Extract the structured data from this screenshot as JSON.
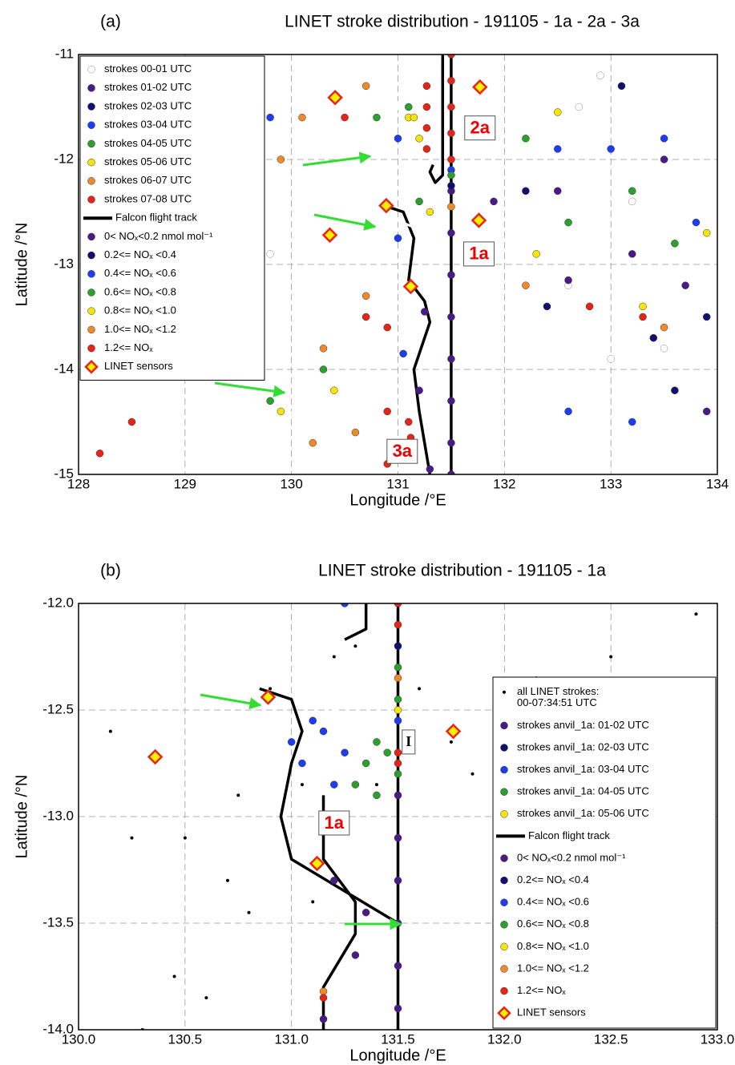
{
  "chart_data": [
    {
      "type": "scatter",
      "panel_label": "(a)",
      "title": "LINET stroke distribution - 191105 - 1a - 2a - 3a",
      "x_label": "Longitude /°E",
      "y_label": "Latitude /°N",
      "xlim": [
        128,
        134
      ],
      "ylim": [
        -15,
        -11
      ],
      "xticks": [
        128,
        129,
        130,
        131,
        132,
        133,
        134
      ],
      "yticks": [
        -11,
        -12,
        -13,
        -14,
        -15
      ],
      "grid": true,
      "legend_corner": "upper left",
      "series": [
        {
          "name": "strokes 00-01 UTC",
          "marker": "circle",
          "color": "#ffffff",
          "x": [
            132.7,
            133.2,
            132.6,
            133.5,
            132.9,
            129.8,
            133.0
          ],
          "y": [
            -11.5,
            -12.4,
            -13.2,
            -13.8,
            -11.2,
            -12.9,
            -13.9
          ]
        },
        {
          "name": "strokes 01-02 UTC",
          "marker": "circle",
          "color": "#4b1a8a",
          "x": [
            132.5,
            132.6,
            133.7,
            133.2,
            133.9,
            131.9,
            133.5
          ],
          "y": [
            -12.3,
            -13.15,
            -13.2,
            -12.9,
            -14.4,
            -12.4,
            -12.0
          ]
        },
        {
          "name": "strokes 02-03 UTC",
          "marker": "circle",
          "color": "#101070",
          "x": [
            132.2,
            133.9,
            133.6,
            132.4,
            133.1,
            133.4
          ],
          "y": [
            -12.3,
            -13.5,
            -14.2,
            -13.4,
            -11.3,
            -13.7
          ]
        },
        {
          "name": "strokes 03-04 UTC",
          "marker": "circle",
          "color": "#1e3cf0",
          "x": [
            133.0,
            133.5,
            132.5,
            131.0,
            132.6,
            133.2,
            129.8,
            131.0,
            133.8
          ],
          "y": [
            -11.9,
            -11.8,
            -11.9,
            -12.75,
            -14.4,
            -14.5,
            -11.6,
            -11.8,
            -12.6
          ]
        },
        {
          "name": "strokes 04-05 UTC",
          "marker": "circle",
          "color": "#2ca02c",
          "x": [
            133.2,
            132.2,
            131.1,
            130.8,
            129.8,
            132.6,
            131.2,
            130.3,
            133.6
          ],
          "y": [
            -12.3,
            -11.8,
            -11.5,
            -11.6,
            -14.3,
            -12.6,
            -12.4,
            -14.0,
            -12.8
          ]
        },
        {
          "name": "strokes 05-06 UTC",
          "marker": "circle",
          "color": "#f5e50a",
          "x": [
            131.1,
            133.3,
            129.9,
            130.4,
            132.5,
            131.3,
            133.9,
            132.3
          ],
          "y": [
            -11.6,
            -13.4,
            -14.4,
            -14.2,
            -11.55,
            -12.5,
            -12.7,
            -12.9
          ]
        },
        {
          "name": "strokes 06-07 UTC",
          "marker": "circle",
          "color": "#ee8a2a",
          "x": [
            130.7,
            130.6,
            130.3,
            130.2,
            130.7,
            129.9,
            133.5,
            130.1,
            132.2
          ],
          "y": [
            -13.3,
            -14.6,
            -13.8,
            -14.7,
            -11.3,
            -12.0,
            -13.6,
            -11.6,
            -13.2
          ]
        },
        {
          "name": "strokes 07-08 UTC",
          "marker": "circle",
          "color": "#e62418",
          "x": [
            130.7,
            130.9,
            130.9,
            130.5,
            133.3,
            128.2,
            130.9,
            132.8,
            128.5
          ],
          "y": [
            -13.5,
            -13.6,
            -14.9,
            -11.6,
            -13.5,
            -14.8,
            -14.4,
            -13.4,
            -14.5
          ]
        },
        {
          "name": "Falcon flight track",
          "marker": "line",
          "color": "#000000",
          "x": [
            131.42,
            131.42,
            131.35,
            131.3,
            131.33,
            null,
            130.9,
            131.05,
            131.15,
            131.1,
            131.25,
            131.3,
            131.15,
            131.2,
            131.3,
            null,
            131.5,
            131.5
          ],
          "y": [
            -11.0,
            -12.15,
            -12.22,
            -12.12,
            -12.05,
            null,
            -12.45,
            -12.5,
            -12.75,
            -13.15,
            -13.35,
            -13.55,
            -14.0,
            -14.4,
            -15.0,
            null,
            -11.0,
            -15.0
          ]
        },
        {
          "name": "0< NOₓ<0.2 nmol mol⁻¹",
          "marker": "circle",
          "color": "#4b1a8a",
          "x": [
            131.5,
            131.5,
            131.5,
            131.5,
            131.5,
            131.5,
            131.5,
            131.5,
            131.3,
            131.2,
            131.25
          ],
          "y": [
            -12.3,
            -12.7,
            -13.1,
            -13.5,
            -13.9,
            -14.3,
            -14.7,
            -15.0,
            -14.95,
            -14.2,
            -13.45
          ]
        },
        {
          "name": "0.2<= NOₓ <0.4",
          "marker": "circle",
          "color": "#101070",
          "x": [
            131.5
          ],
          "y": [
            -12.25
          ]
        },
        {
          "name": "0.4<= NOₓ <0.6",
          "marker": "circle",
          "color": "#1e3cf0",
          "x": [
            131.05,
            131.5
          ],
          "y": [
            -13.85,
            -12.1
          ]
        },
        {
          "name": "0.6<= NOₓ <0.8",
          "marker": "circle",
          "color": "#2ca02c",
          "x": [
            131.5
          ],
          "y": [
            -12.15
          ]
        },
        {
          "name": "0.8<= NOₓ <1.0",
          "marker": "circle",
          "color": "#f5e50a",
          "x": [
            131.15,
            131.2
          ],
          "y": [
            -11.6,
            -11.8
          ]
        },
        {
          "name": "1.0<= NOₓ <1.2",
          "marker": "circle",
          "color": "#ee8a2a",
          "x": [
            131.5
          ],
          "y": [
            -12.45
          ]
        },
        {
          "name": "1.2<= NOₓ",
          "marker": "circle",
          "color": "#e62418",
          "x": [
            131.5,
            131.5,
            131.5,
            131.5,
            131.5,
            131.27,
            131.27,
            131.27,
            131.27,
            131.1,
            131.12
          ],
          "y": [
            -11.0,
            -11.25,
            -11.5,
            -11.75,
            -12.0,
            -11.3,
            -11.5,
            -11.7,
            -11.9,
            -14.5,
            -14.65
          ]
        },
        {
          "name": "LINET sensors",
          "marker": "diamond",
          "color": "#e62418",
          "x": [
            130.41,
            131.77,
            130.36,
            130.89,
            131.12,
            131.76
          ],
          "y": [
            -11.41,
            -11.31,
            -12.72,
            -12.44,
            -13.21,
            -12.58
          ]
        }
      ],
      "annotations": [
        {
          "text": "2a",
          "x": 131.77,
          "y": -11.7
        },
        {
          "text": "1a",
          "x": 131.76,
          "y": -12.9
        },
        {
          "text": "3a",
          "x": 131.04,
          "y": -14.78
        }
      ]
    },
    {
      "type": "scatter",
      "panel_label": "(b)",
      "title": "LINET stroke distribution - 191105 - 1a",
      "x_label": "Longitude /°E",
      "y_label": "Latitude /°N",
      "xlim": [
        130,
        133
      ],
      "ylim": [
        -14,
        -12
      ],
      "xticks": [
        {
          "value": 130,
          "label": "130.0"
        },
        130.5,
        {
          "value": 131,
          "label": "131.0"
        },
        131.5,
        {
          "value": 132,
          "label": "132.0"
        },
        132.5,
        {
          "value": 133,
          "label": "133.0"
        }
      ],
      "yticks": [
        {
          "value": -12,
          "label": "-12.0"
        },
        -12.5,
        {
          "value": -13,
          "label": "-13.0"
        },
        -13.5,
        {
          "value": -14,
          "label": "-14.0"
        }
      ],
      "grid": true,
      "legend_corner": "lower right",
      "series": [
        {
          "name": "all LINET strokes:\n00-07:34:51 UTC",
          "marker": "dot",
          "color": "#000000",
          "x": [
            130.8,
            130.5,
            130.45,
            130.9,
            132.5,
            132.5,
            131.85,
            131.2,
            131.75,
            132.15,
            132.8,
            130.6,
            130.75,
            131.05,
            132.0,
            132.3,
            130.3,
            131.3,
            131.6,
            130.25,
            132.9,
            131.1,
            130.15,
            131.4,
            130.7
          ],
          "y": [
            -13.45,
            -13.1,
            -13.75,
            -12.4,
            -12.25,
            -12.55,
            -12.8,
            -12.25,
            -12.65,
            -12.35,
            -12.55,
            -13.85,
            -12.9,
            -12.85,
            -13.0,
            -12.7,
            -14.0,
            -12.2,
            -12.4,
            -13.1,
            -12.05,
            -13.4,
            -12.6,
            -12.85,
            -13.3
          ]
        },
        {
          "name": "strokes anvil_1a: 01-02 UTC",
          "marker": "circle",
          "color": "#4b1a8a",
          "x": [],
          "y": []
        },
        {
          "name": "strokes anvil_1a: 02-03 UTC",
          "marker": "circle",
          "color": "#101070",
          "x": [],
          "y": []
        },
        {
          "name": "strokes anvil_1a: 03-04 UTC",
          "marker": "circle",
          "color": "#1e3cf0",
          "x": [
            131.15,
            131.05,
            131.2,
            131.1,
            131.25,
            131.0
          ],
          "y": [
            -12.6,
            -12.75,
            -12.85,
            -12.55,
            -12.7,
            -12.65
          ]
        },
        {
          "name": "strokes anvil_1a: 04-05 UTC",
          "marker": "circle",
          "color": "#2ca02c",
          "x": [
            131.35,
            131.4,
            131.45,
            131.3,
            131.4,
            131.5
          ],
          "y": [
            -12.75,
            -12.9,
            -12.7,
            -12.85,
            -12.65,
            -12.8
          ]
        },
        {
          "name": "strokes anvil_1a: 05-06 UTC",
          "marker": "circle",
          "color": "#f5e50a",
          "x": [],
          "y": []
        },
        {
          "name": "Falcon flight track",
          "marker": "line",
          "color": "#000000",
          "x": [
            130.85,
            131.0,
            131.05,
            131.0,
            130.95,
            131.0,
            131.5,
            null,
            131.35,
            131.35,
            131.25,
            null,
            131.15,
            131.15,
            131.3,
            131.3,
            131.15,
            131.15,
            null,
            131.5,
            131.5
          ],
          "y": [
            -12.4,
            -12.45,
            -12.6,
            -12.75,
            -13.0,
            -13.2,
            -13.5,
            null,
            -12.0,
            -12.12,
            -12.17,
            null,
            -12.9,
            -13.2,
            -13.4,
            -13.55,
            -13.8,
            -14.0,
            null,
            -12.0,
            -14.0
          ]
        },
        {
          "name": "0< NOₓ<0.2 nmol mol⁻¹",
          "marker": "circle",
          "color": "#4b1a8a",
          "x": [
            131.5,
            131.5,
            131.5,
            131.5,
            131.5,
            131.5,
            131.2,
            131.35,
            131.3,
            131.15
          ],
          "y": [
            -12.9,
            -13.1,
            -13.3,
            -13.5,
            -13.7,
            -13.9,
            -13.3,
            -13.45,
            -13.65,
            -13.95
          ]
        },
        {
          "name": "0.2<= NOₓ <0.4",
          "marker": "circle",
          "color": "#101070",
          "x": [
            131.5
          ],
          "y": [
            -12.2
          ]
        },
        {
          "name": "0.4<= NOₓ <0.6",
          "marker": "circle",
          "color": "#1e3cf0",
          "x": [
            131.25,
            131.5
          ],
          "y": [
            -12.0,
            -12.55
          ]
        },
        {
          "name": "0.6<= NOₓ <0.8",
          "marker": "circle",
          "color": "#2ca02c",
          "x": [
            131.5,
            131.5
          ],
          "y": [
            -12.3,
            -12.45
          ]
        },
        {
          "name": "0.8<= NOₓ <1.0",
          "marker": "circle",
          "color": "#f5e50a",
          "x": [
            131.5
          ],
          "y": [
            -12.5
          ]
        },
        {
          "name": "1.0<= NOₓ <1.2",
          "marker": "circle",
          "color": "#ee8a2a",
          "x": [
            131.5,
            131.15
          ],
          "y": [
            -12.35,
            -13.82
          ]
        },
        {
          "name": "1.2<= NOₓ",
          "marker": "circle",
          "color": "#e62418",
          "x": [
            131.5,
            131.5,
            131.5,
            131.5,
            131.15
          ],
          "y": [
            -12.0,
            -12.1,
            -12.7,
            -12.75,
            -13.85
          ]
        },
        {
          "name": "LINET sensors",
          "marker": "diamond",
          "color": "#e62418",
          "x": [
            130.36,
            130.89,
            131.12,
            131.76
          ],
          "y": [
            -12.72,
            -12.44,
            -13.22,
            -12.6
          ]
        }
      ],
      "annotations": [
        {
          "text": "1a",
          "x": 131.2,
          "y": -13.03
        },
        {
          "text": "I",
          "x": 131.55,
          "y": -12.65
        }
      ]
    }
  ]
}
